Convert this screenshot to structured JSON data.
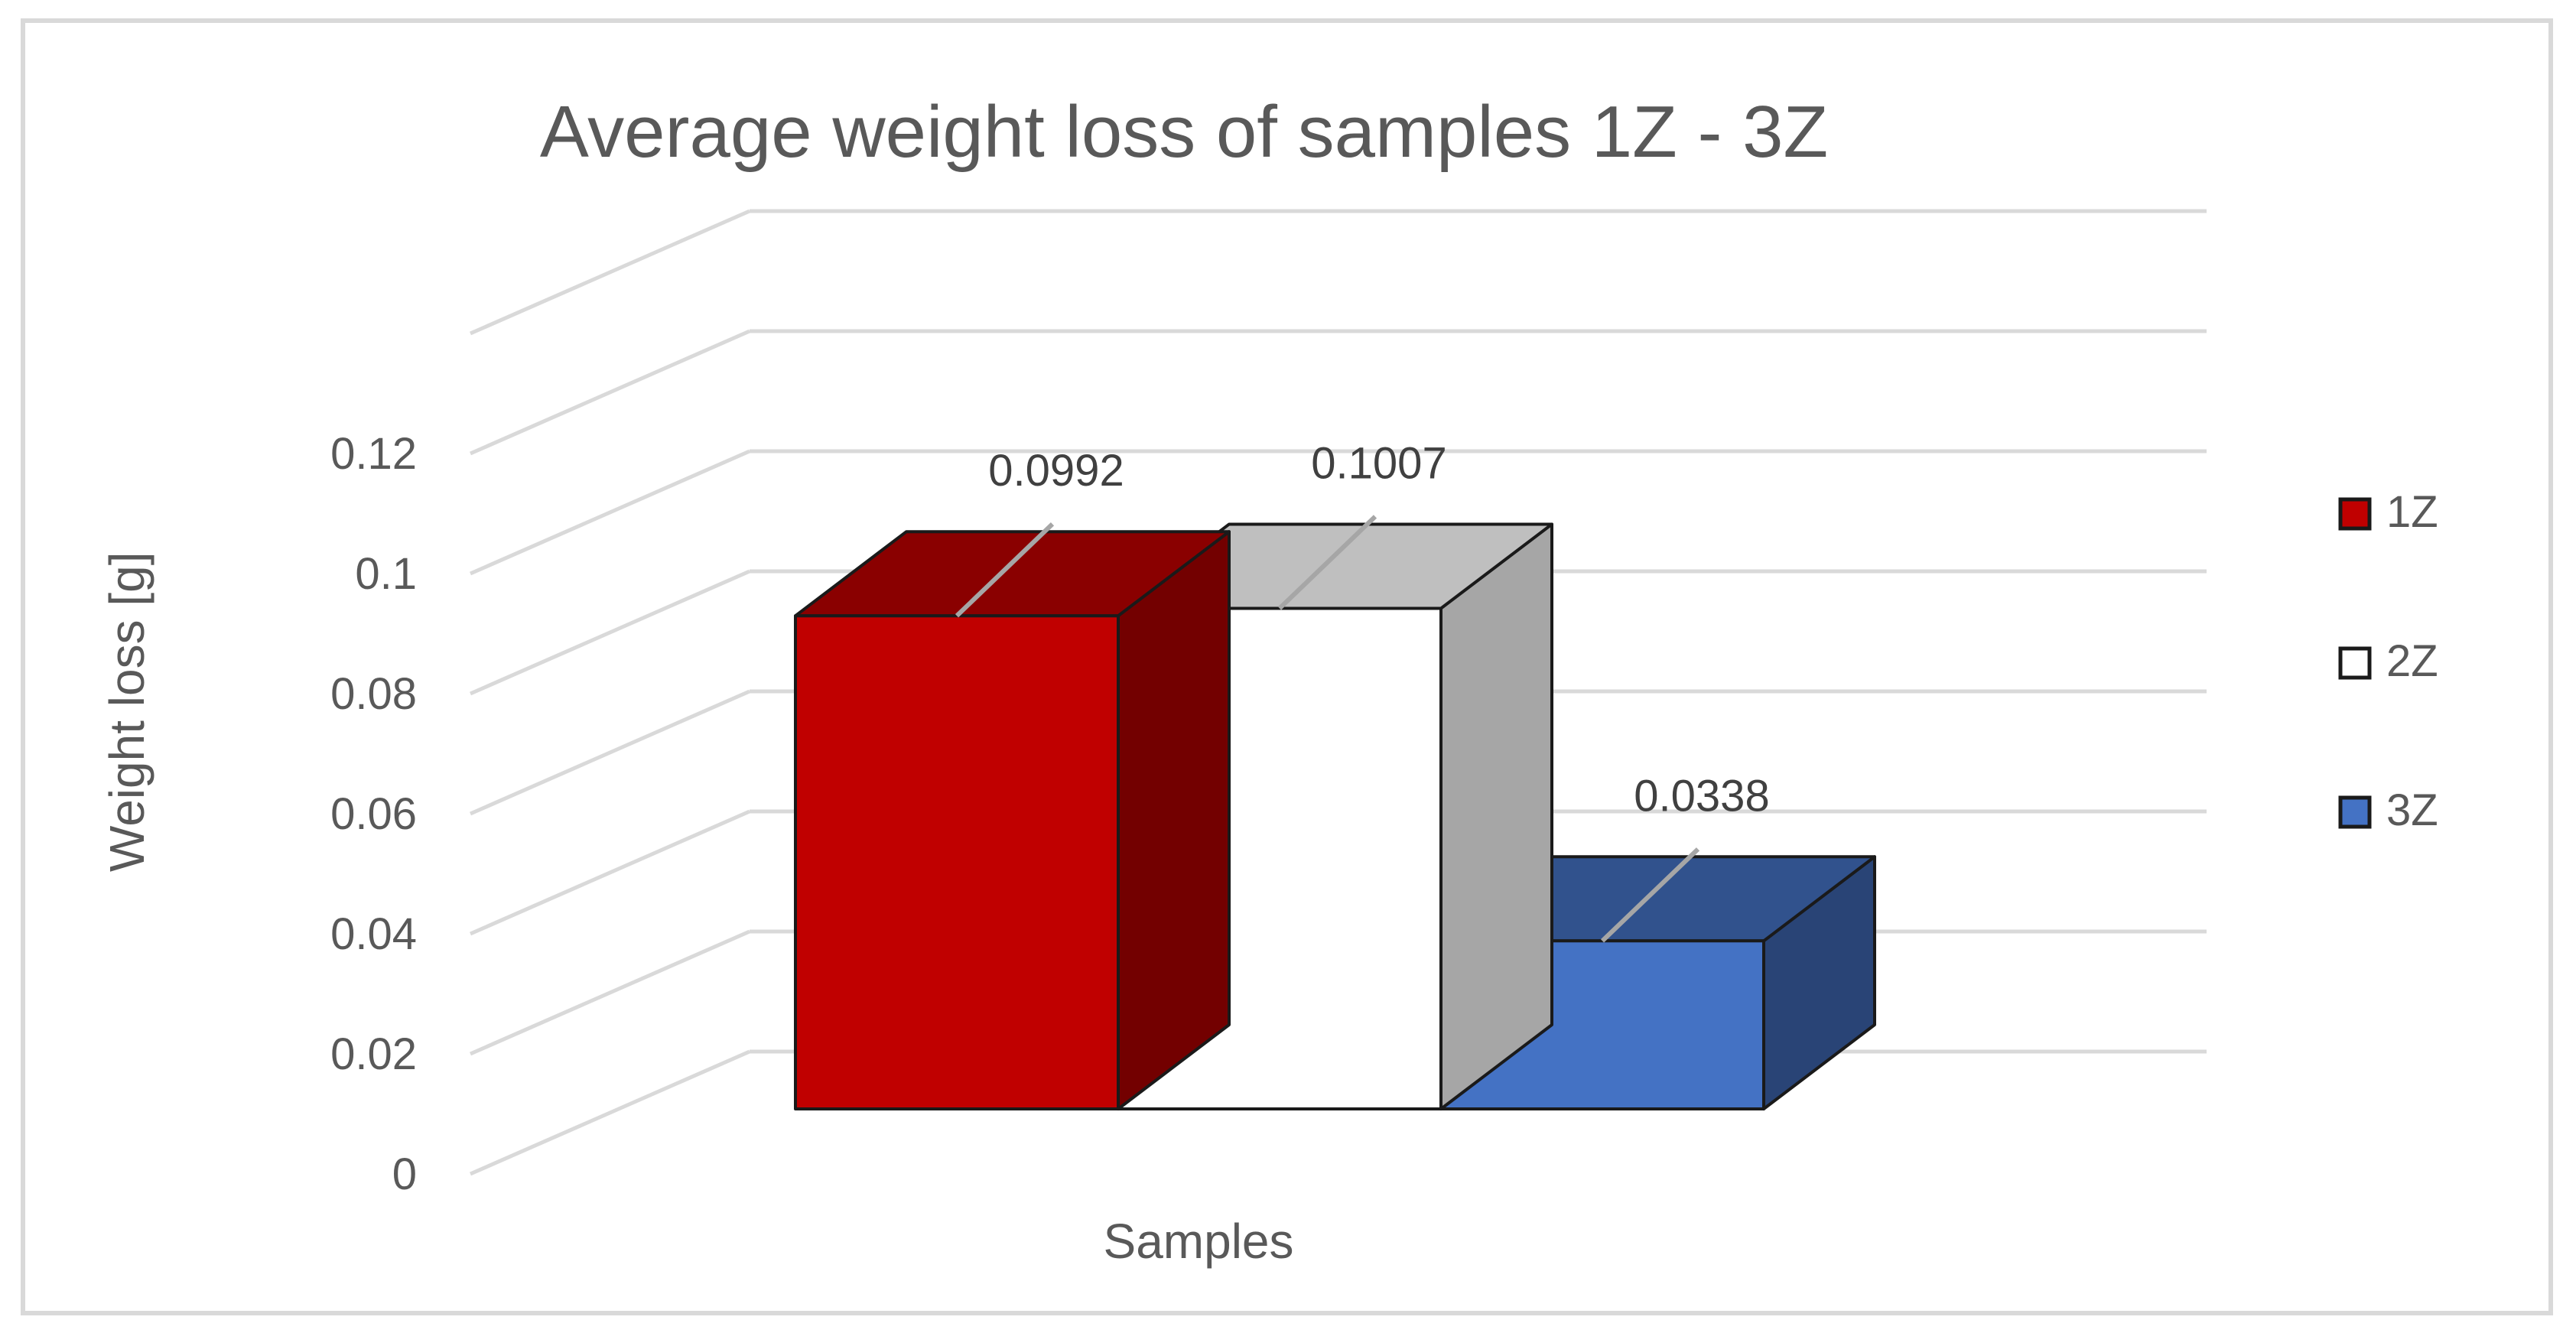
{
  "chart_data": {
    "type": "bar",
    "title": "Average weight loss of samples 1Z - 3Z",
    "xlabel": "Samples",
    "ylabel": "Weight loss [g]",
    "ylim": [
      0,
      0.12
    ],
    "yticks": [
      "0",
      "0.02",
      "0.04",
      "0.06",
      "0.08",
      "0.1",
      "0.12"
    ],
    "grid": true,
    "legend_position": "right",
    "three_d": true,
    "series": [
      {
        "name": "1Z",
        "value": 0.0992,
        "label": "0.0992",
        "color": "#C00000"
      },
      {
        "name": "2Z",
        "value": 0.1007,
        "label": "0.1007",
        "color": "#FFFFFF"
      },
      {
        "name": "3Z",
        "value": 0.0338,
        "label": "0.0338",
        "color": "#4472C4"
      }
    ]
  }
}
